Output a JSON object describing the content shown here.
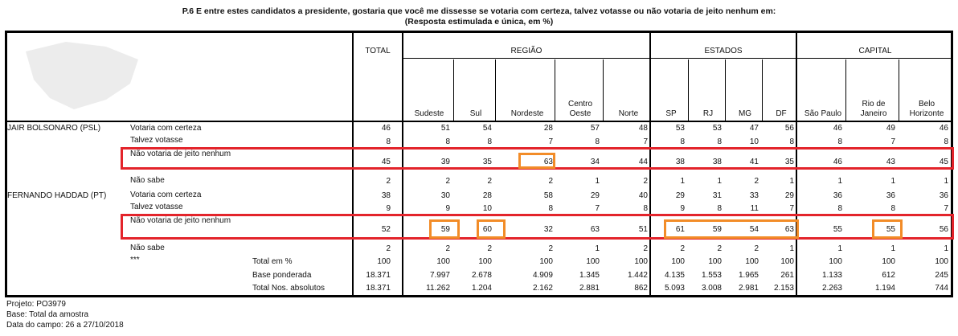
{
  "title": {
    "line1": "P.6 E entre estes candidatos a presidente, gostaria que você me dissesse se votaria com certeza, talvez votasse ou não votaria de jeito nenhum em:",
    "line2": "(Resposta estimulada e única, em %)"
  },
  "groups": {
    "total": "TOTAL",
    "regiao": "REGIÃO",
    "estados": "ESTADOS",
    "capital": "CAPITAL"
  },
  "columns": [
    [
      "Sudeste"
    ],
    [
      "Sul"
    ],
    [
      "Nordeste"
    ],
    [
      "Centro",
      "Oeste"
    ],
    [
      "Norte"
    ],
    [
      "SP"
    ],
    [
      "RJ"
    ],
    [
      "MG"
    ],
    [
      "DF"
    ],
    [
      "São Paulo"
    ],
    [
      "Rio de",
      "Janeiro"
    ],
    [
      "Belo",
      "Horizonte"
    ]
  ],
  "candidates": [
    "JAIR BOLSONARO (PSL)",
    "FERNANDO HADDAD (PT)"
  ],
  "rows": [
    {
      "label": "Votaria com certeza",
      "values": [
        "46",
        "51",
        "54",
        "28",
        "57",
        "48",
        "53",
        "53",
        "47",
        "56",
        "46",
        "49",
        "46"
      ]
    },
    {
      "label": "Talvez votasse",
      "values": [
        "8",
        "8",
        "8",
        "7",
        "8",
        "7",
        "8",
        "8",
        "10",
        "8",
        "8",
        "7",
        "8"
      ]
    },
    {
      "label": "Não votaria de jeito nenhum",
      "values": [
        "45",
        "39",
        "35",
        "63",
        "34",
        "44",
        "38",
        "38",
        "41",
        "35",
        "46",
        "43",
        "45"
      ]
    },
    {
      "label": "Não sabe",
      "values": [
        "2",
        "2",
        "2",
        "2",
        "1",
        "2",
        "1",
        "1",
        "2",
        "1",
        "1",
        "1",
        "1"
      ]
    },
    {
      "label": "Votaria com certeza",
      "values": [
        "38",
        "30",
        "28",
        "58",
        "29",
        "40",
        "29",
        "31",
        "33",
        "29",
        "36",
        "36",
        "36"
      ]
    },
    {
      "label": "Talvez votasse",
      "values": [
        "9",
        "9",
        "10",
        "8",
        "7",
        "8",
        "9",
        "8",
        "11",
        "7",
        "8",
        "8",
        "7"
      ]
    },
    {
      "label": "Não votaria de jeito nenhum",
      "values": [
        "52",
        "59",
        "60",
        "32",
        "63",
        "51",
        "61",
        "59",
        "54",
        "63",
        "55",
        "55",
        "56"
      ]
    },
    {
      "label": "Não sabe",
      "values": [
        "2",
        "2",
        "2",
        "2",
        "1",
        "2",
        "2",
        "2",
        "2",
        "1",
        "1",
        "1",
        "1"
      ]
    }
  ],
  "stars": "***",
  "totals": [
    {
      "label": "Total em %",
      "values": [
        "100",
        "100",
        "100",
        "100",
        "100",
        "100",
        "100",
        "100",
        "100",
        "100",
        "100",
        "100",
        "100"
      ]
    },
    {
      "label": "Base ponderada",
      "values": [
        "18.371",
        "7.997",
        "2.678",
        "4.909",
        "1.345",
        "1.442",
        "4.135",
        "1.553",
        "1.965",
        "261",
        "1.133",
        "612",
        "245"
      ]
    },
    {
      "label": "Total Nos. absolutos",
      "values": [
        "18.371",
        "11.262",
        "1.204",
        "2.162",
        "2.881",
        "862",
        "5.093",
        "3.008",
        "2.981",
        "2.153",
        "2.263",
        "1.194",
        "744"
      ]
    }
  ],
  "footer": [
    "Projeto: PO3979",
    "Base: Total da amostra",
    "Data do campo: 26 a 27/10/2018"
  ],
  "colors": {
    "red_highlight": "#e3242b",
    "orange_highlight": "#f28c28",
    "border": "#000000"
  }
}
